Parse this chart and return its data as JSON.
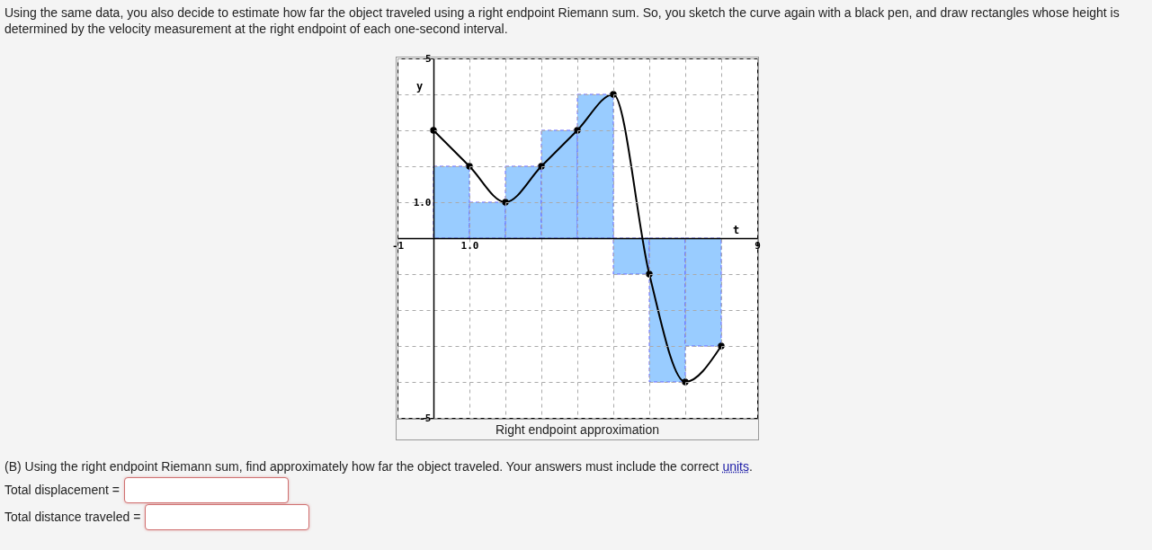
{
  "chart_data": {
    "type": "histogram",
    "title": "Using the same data, you also decide to estimate how far the object traveled using a right endpoint Riemann sum. So, you sketch the curve again with a black pen, and draw rectangles whose height is determined by the velocity measurement at the right endpoint of each one-second interval.",
    "xlabel": "t",
    "ylabel": "y",
    "bins": [
      0,
      1,
      2,
      3,
      4,
      5,
      6,
      7,
      8
    ],
    "series": [
      {
        "values": [
          2,
          1,
          2,
          3,
          4,
          -1,
          -4,
          -3
        ],
        "color": "#99ccff"
      },
      {
        "type": "line",
        "x": [
          0,
          1,
          2,
          3,
          4,
          5,
          6,
          7,
          8
        ],
        "values": [
          3,
          2,
          1,
          2,
          3,
          4,
          -1,
          -4,
          -3
        ],
        "color": "#000000"
      }
    ],
    "marker": "circle",
    "xlim": [
      -1,
      9
    ],
    "ylim": [
      -5,
      5
    ],
    "xticks": [
      -1,
      {
        "value": 0,
        "label": null
      },
      {
        "value": 1,
        "label": "1.0"
      },
      {
        "value": 2,
        "label": null
      },
      {
        "value": 3,
        "label": null
      },
      {
        "value": 4,
        "label": null
      },
      {
        "value": 5,
        "label": null
      },
      {
        "value": 6,
        "label": null
      },
      {
        "value": 7,
        "label": null
      },
      {
        "value": 8,
        "label": null
      },
      9
    ],
    "yticks": [
      -5,
      {
        "value": -4,
        "label": null
      },
      {
        "value": -3,
        "label": null
      },
      {
        "value": -2,
        "label": null
      },
      {
        "value": -1,
        "label": null
      },
      {
        "value": 0,
        "label": null
      },
      {
        "value": 1,
        "label": "1.0"
      },
      {
        "value": 2,
        "label": null
      },
      {
        "value": 3,
        "label": null
      },
      {
        "value": 4,
        "label": null
      },
      5
    ],
    "grid": true,
    "annotations": [
      "Right endpoint approximation",
      "(B) Using the right endpoint Riemann sum, find approximately how far the object traveled. Your answers must include the correct units.",
      "Total displacement =",
      "Total distance traveled ="
    ]
  }
}
